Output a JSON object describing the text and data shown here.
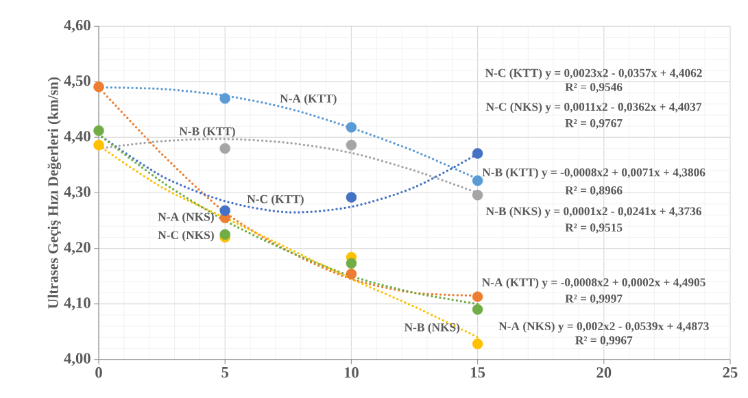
{
  "chart_data": {
    "type": "scatter",
    "ylabel": "Ultrases Geçiş Hızı Değerleri (km/sn)",
    "xlim": [
      0,
      25
    ],
    "xticks": [
      0,
      5,
      10,
      15,
      20,
      25
    ],
    "ylim": [
      4.0,
      4.6
    ],
    "yticks": [
      {
        "value": 4.0,
        "label": "4,00"
      },
      {
        "value": 4.1,
        "label": "4,10"
      },
      {
        "value": 4.2,
        "label": "4,20"
      },
      {
        "value": 4.3,
        "label": "4,30"
      },
      {
        "value": 4.4,
        "label": "4,40"
      },
      {
        "value": 4.5,
        "label": "4,50"
      },
      {
        "value": 4.6,
        "label": "4,60"
      }
    ],
    "grid": true,
    "marker": "circle",
    "series": [
      {
        "name": "N-A (KTT)",
        "color": "#5b9bd5",
        "x": [
          5,
          10,
          15
        ],
        "values": [
          4.47,
          4.418,
          4.322
        ]
      },
      {
        "name": "N-A (NKS)",
        "color": "#ed7d31",
        "x": [
          0,
          5,
          10,
          15
        ],
        "values": [
          4.491,
          4.255,
          4.154,
          4.113
        ]
      },
      {
        "name": "N-B (KTT)",
        "color": "#a5a5a5",
        "x": [
          5,
          10,
          15
        ],
        "values": [
          4.38,
          4.386,
          4.296
        ]
      },
      {
        "name": "N-B (NKS)",
        "color": "#ffc000",
        "x": [
          0,
          5,
          10,
          15
        ],
        "values": [
          4.386,
          4.22,
          4.184,
          4.028
        ]
      },
      {
        "name": "N-C (KTT)",
        "color": "#4472c4",
        "x": [
          5,
          10,
          15
        ],
        "values": [
          4.268,
          4.292,
          4.371
        ]
      },
      {
        "name": "N-C (NKS)",
        "color": "#70ad47",
        "x": [
          0,
          5,
          10,
          15
        ],
        "values": [
          4.412,
          4.225,
          4.173,
          4.09
        ]
      },
      {
        "type": "line",
        "marker": "none",
        "line_style": "dotted",
        "color": "#5b9bd5",
        "x": [
          0,
          2.5,
          5,
          7.5,
          10,
          12.5,
          15
        ],
        "values": [
          4.49,
          4.487,
          4.475,
          4.452,
          4.417,
          4.375,
          4.325
        ]
      },
      {
        "type": "line",
        "marker": "none",
        "line_style": "dotted",
        "color": "#ed7d31",
        "x": [
          0,
          2.5,
          5,
          7.5,
          10,
          12.5,
          15
        ],
        "values": [
          4.49,
          4.37,
          4.265,
          4.195,
          4.145,
          4.12,
          4.115
        ]
      },
      {
        "type": "line",
        "marker": "none",
        "line_style": "dotted",
        "color": "#a5a5a5",
        "x": [
          0,
          2.5,
          5,
          7.5,
          10,
          12.5,
          15
        ],
        "values": [
          4.38,
          4.393,
          4.397,
          4.39,
          4.372,
          4.34,
          4.3
        ]
      },
      {
        "type": "line",
        "marker": "none",
        "line_style": "dotted",
        "color": "#ffc000",
        "x": [
          0,
          2.5,
          5,
          7.5,
          10,
          12.5,
          15
        ],
        "values": [
          4.385,
          4.31,
          4.255,
          4.2,
          4.145,
          4.095,
          4.04
        ]
      },
      {
        "type": "line",
        "marker": "none",
        "line_style": "dotted",
        "color": "#4472c4",
        "x": [
          0,
          2.5,
          5,
          7.5,
          10,
          12.5,
          15
        ],
        "values": [
          4.405,
          4.33,
          4.285,
          4.265,
          4.275,
          4.31,
          4.37
        ]
      },
      {
        "type": "line",
        "marker": "none",
        "line_style": "dotted",
        "color": "#70ad47",
        "x": [
          0,
          2.5,
          5,
          7.5,
          10,
          12.5,
          15
        ],
        "values": [
          4.405,
          4.32,
          4.25,
          4.195,
          4.15,
          4.12,
          4.1
        ]
      }
    ],
    "annotations": [
      "N-C (KTT) y = 0,0023x2 - 0,0357x + 4,4062",
      "R² = 0,9546",
      "N-C (NKS) y = 0,0011x2 - 0,0362x + 4,4037",
      "R² = 0,9767",
      "N-B (KTT) y = -0,0008x2 + 0,0071x + 4,3806",
      "R² = 0,8966",
      "N-B (NKS) y = 0,0001x2 - 0,0241x + 4,3736",
      "R² = 0,9515",
      "N-A (KTT) y = -0,0008x2 + 0,0002x + 4,4905",
      "R² = 0,9997",
      "N-A (NKS) y = 0,002x2 - 0,0539x + 4,4873",
      "R² = 0,9967"
    ]
  }
}
